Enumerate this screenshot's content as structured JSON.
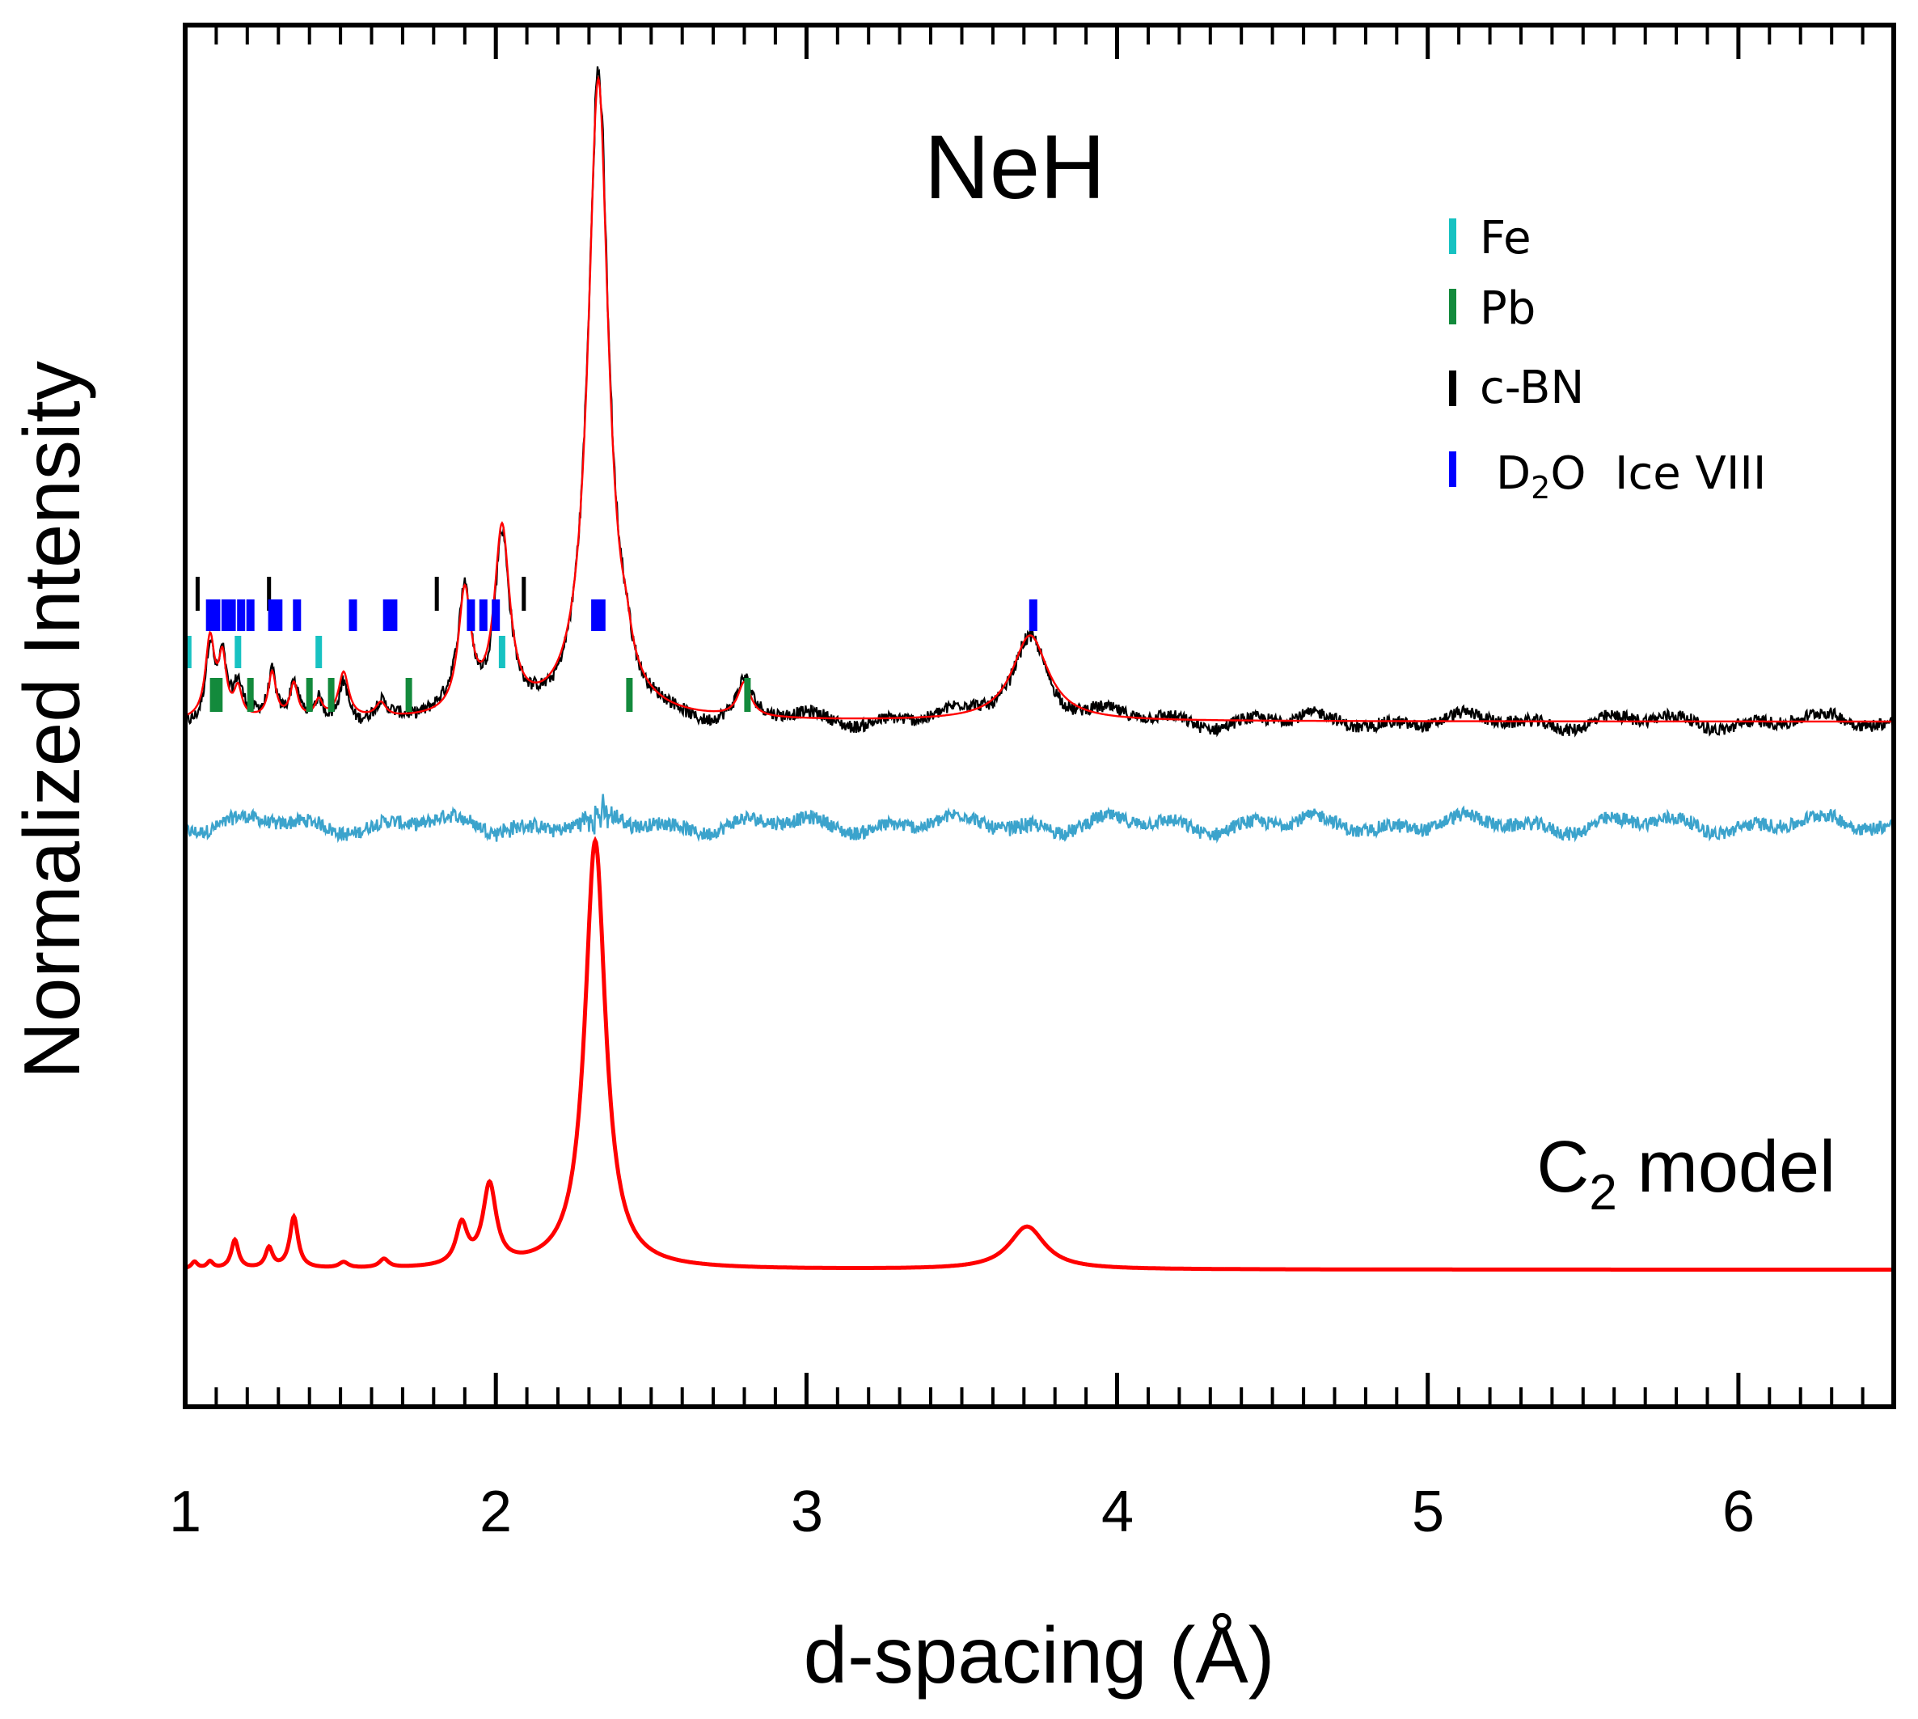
{
  "chart_data": {
    "type": "line",
    "title": "NeH",
    "xlabel": "d-spacing (Å)",
    "ylabel": "Normalized Intensity",
    "xlim": [
      1.0,
      6.5
    ],
    "ylim": [
      -0.6,
      1.82
    ],
    "x_ticks": [
      1,
      2,
      3,
      4,
      5,
      6
    ],
    "x_tick_labels": [
      "1",
      "2",
      "3",
      "4",
      "5",
      "6"
    ],
    "minor_tick_step": 0.1,
    "grid": false,
    "baselines": {
      "observed": 0.6,
      "difference": 0.42,
      "model": -0.36
    },
    "colors": {
      "observed": "#000000",
      "calculated": "#ff0000",
      "difference": "#3ba3cc",
      "model": "#ff0000",
      "Fe": "#17c2c2",
      "Pb": "#138a3c",
      "cBN": "#000000",
      "D2O": "#0000ff"
    },
    "peaks": [
      {
        "d": 1.08,
        "h": 0.14,
        "w": 0.018
      },
      {
        "d": 1.12,
        "h": 0.1,
        "w": 0.015
      },
      {
        "d": 1.17,
        "h": 0.05,
        "w": 0.015
      },
      {
        "d": 1.28,
        "h": 0.08,
        "w": 0.015
      },
      {
        "d": 1.35,
        "h": 0.06,
        "w": 0.015
      },
      {
        "d": 1.43,
        "h": 0.03,
        "w": 0.015
      },
      {
        "d": 1.51,
        "h": 0.08,
        "w": 0.02
      },
      {
        "d": 1.63,
        "h": 0.025,
        "w": 0.02
      },
      {
        "d": 1.9,
        "h": 0.21,
        "w": 0.025
      },
      {
        "d": 2.02,
        "h": 0.32,
        "w": 0.03
      },
      {
        "d": 2.33,
        "h": 1.12,
        "w": 0.04
      },
      {
        "d": 2.42,
        "h": 0.04,
        "w": 0.02
      },
      {
        "d": 2.8,
        "h": 0.06,
        "w": 0.025
      },
      {
        "d": 3.72,
        "h": 0.15,
        "w": 0.07
      }
    ],
    "model_peaks": [
      {
        "d": 1.03,
        "h": 0.012,
        "w": 0.012
      },
      {
        "d": 1.08,
        "h": 0.012,
        "w": 0.012
      },
      {
        "d": 1.16,
        "h": 0.05,
        "w": 0.014
      },
      {
        "d": 1.27,
        "h": 0.035,
        "w": 0.014
      },
      {
        "d": 1.35,
        "h": 0.09,
        "w": 0.016
      },
      {
        "d": 1.51,
        "h": 0.01,
        "w": 0.018
      },
      {
        "d": 1.64,
        "h": 0.015,
        "w": 0.018
      },
      {
        "d": 1.89,
        "h": 0.07,
        "w": 0.022
      },
      {
        "d": 1.98,
        "h": 0.14,
        "w": 0.026
      },
      {
        "d": 2.32,
        "h": 0.75,
        "w": 0.04
      },
      {
        "d": 3.71,
        "h": 0.075,
        "w": 0.07
      }
    ],
    "reflections": {
      "cBN": [
        1.04,
        1.27,
        1.81,
        2.09
      ],
      "D2O": [
        1.08,
        1.1,
        1.13,
        1.15,
        1.18,
        1.21,
        1.28,
        1.3,
        1.36,
        1.54,
        1.65,
        1.67,
        1.92,
        1.96,
        2.0,
        2.32,
        2.34,
        3.73
      ],
      "Fe": [
        1.01,
        1.17,
        1.43,
        2.02
      ],
      "Pb": [
        1.09,
        1.11,
        1.21,
        1.4,
        1.47,
        1.72,
        2.43,
        2.81
      ]
    }
  },
  "legend": [
    {
      "key": "Fe",
      "label": "Fe",
      "color": "#17c2c2"
    },
    {
      "key": "Pb",
      "label": "Pb",
      "color": "#138a3c"
    },
    {
      "key": "cBN",
      "label": "c-BN",
      "color": "#000000"
    },
    {
      "key": "D2O",
      "label_main": "D",
      "label_sub": "2",
      "label_rest": "O  Ice VIII",
      "color": "#0000ff"
    }
  ],
  "model_label": {
    "main": "C",
    "sub": "2",
    "rest": " model"
  }
}
